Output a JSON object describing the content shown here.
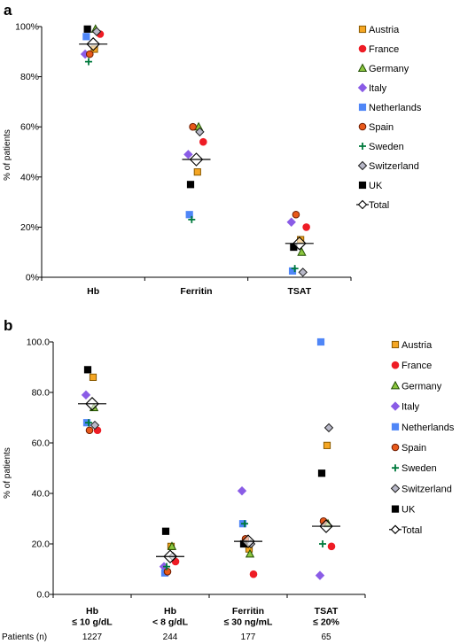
{
  "panels": [
    {
      "letter": "a",
      "chart_data": {
        "type": "scatter",
        "title": "",
        "xlabel": "",
        "ylabel": "% of patients",
        "categories": [
          "Hb",
          "Ferritin",
          "TSAT"
        ],
        "y_ticks": [
          "0%",
          "20%",
          "40%",
          "60%",
          "80%",
          "100%"
        ],
        "ylim": [
          0,
          100
        ],
        "grid": false,
        "legend_position": "right",
        "series": [
          {
            "name": "Austria",
            "values": [
              91,
              42,
              15
            ]
          },
          {
            "name": "France",
            "values": [
              97,
              54,
              20
            ]
          },
          {
            "name": "Germany",
            "values": [
              99,
              60,
              10
            ]
          },
          {
            "name": "Italy",
            "values": [
              89,
              49,
              22
            ]
          },
          {
            "name": "Netherlands",
            "values": [
              96,
              25,
              2.5
            ]
          },
          {
            "name": "Spain",
            "values": [
              89,
              60,
              25
            ]
          },
          {
            "name": "Sweden",
            "values": [
              86,
              23,
              3.5
            ]
          },
          {
            "name": "Switzerland",
            "values": [
              98,
              58,
              2
            ]
          },
          {
            "name": "UK",
            "values": [
              99,
              37,
              12
            ]
          },
          {
            "name": "Total",
            "values": [
              93,
              47,
              13.5
            ]
          }
        ]
      }
    },
    {
      "letter": "b",
      "chart_data": {
        "type": "scatter",
        "title": "",
        "xlabel": "",
        "ylabel": "% of patients",
        "categories": [
          "Hb\n≤ 10 g/dL",
          "Hb\n< 8 g/dL",
          "Ferritin\n≤ 30 ng/mL",
          "TSAT\n≤ 20%"
        ],
        "y_ticks": [
          "0.0",
          "20.0",
          "40.0",
          "60.0",
          "80.0",
          "100.0"
        ],
        "ylim": [
          0,
          100
        ],
        "grid": false,
        "legend_position": "right",
        "patients_label": "Patients (n)",
        "patients_n": [
          "1227",
          "244",
          "177",
          "65"
        ],
        "series": [
          {
            "name": "Austria",
            "values": [
              86,
              19,
              18,
              59
            ]
          },
          {
            "name": "France",
            "values": [
              65,
              13,
              8,
              19
            ]
          },
          {
            "name": "Germany",
            "values": [
              74,
              19,
              16,
              28
            ]
          },
          {
            "name": "Italy",
            "values": [
              79,
              11,
              41,
              7.5
            ]
          },
          {
            "name": "Netherlands",
            "values": [
              68,
              8.5,
              28,
              100
            ]
          },
          {
            "name": "Spain",
            "values": [
              65,
              9,
              22,
              29
            ]
          },
          {
            "name": "Sweden",
            "values": [
              68,
              11,
              28,
              20
            ]
          },
          {
            "name": "Switzerland",
            "values": [
              67,
              15,
              20,
              66
            ]
          },
          {
            "name": "UK",
            "values": [
              89,
              25,
              20,
              48
            ]
          },
          {
            "name": "Total",
            "values": [
              75.5,
              15,
              21,
              27
            ]
          }
        ]
      }
    }
  ],
  "marker_styles": {
    "Austria": {
      "shape": "square",
      "fill": "#F5A623",
      "stroke": "#8a5a00"
    },
    "France": {
      "shape": "circle",
      "fill": "#EE1C25",
      "stroke": "#EE1C25"
    },
    "Germany": {
      "shape": "triangle",
      "fill": "#8CC63F",
      "stroke": "#1f4d00"
    },
    "Italy": {
      "shape": "diamond",
      "fill": "#8A5CE6",
      "stroke": "#8A5CE6"
    },
    "Netherlands": {
      "shape": "square",
      "fill": "#4F86F7",
      "stroke": "#4F86F7"
    },
    "Spain": {
      "shape": "circle",
      "fill": "#E8591A",
      "stroke": "#6a1a00"
    },
    "Sweden": {
      "shape": "plus",
      "fill": "#007A3D",
      "stroke": "#007A3D"
    },
    "Switzerland": {
      "shape": "diamond",
      "fill": "#B8B8C8",
      "stroke": "#202020"
    },
    "UK": {
      "shape": "square",
      "fill": "#000000",
      "stroke": "#000000"
    },
    "Total": {
      "shape": "bigdiamond",
      "fill": "#ffffff",
      "stroke": "#000000"
    }
  }
}
